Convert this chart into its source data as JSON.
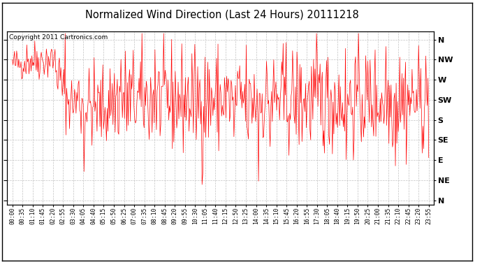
{
  "title": "Normalized Wind Direction (Last 24 Hours) 20111218",
  "copyright_text": "Copyright 2011 Cartronics.com",
  "line_color": "#FF0000",
  "background_color": "#FFFFFF",
  "plot_background": "#FFFFFF",
  "grid_color": "#BBBBBB",
  "ytick_labels": [
    "N",
    "NW",
    "W",
    "SW",
    "S",
    "SE",
    "E",
    "NE",
    "N"
  ],
  "ytick_values": [
    8,
    7,
    6,
    5,
    4,
    3,
    2,
    1,
    0
  ],
  "ylim": [
    -0.2,
    8.4
  ],
  "xtick_labels": [
    "00:00",
    "00:35",
    "01:10",
    "01:45",
    "02:20",
    "02:55",
    "03:30",
    "04:05",
    "04:40",
    "05:15",
    "05:50",
    "06:25",
    "07:00",
    "07:35",
    "08:10",
    "08:45",
    "09:20",
    "09:55",
    "10:30",
    "11:05",
    "11:40",
    "12:15",
    "12:50",
    "13:25",
    "14:00",
    "14:35",
    "15:10",
    "15:45",
    "16:20",
    "16:55",
    "17:30",
    "18:05",
    "18:40",
    "19:15",
    "19:50",
    "20:25",
    "21:00",
    "21:35",
    "22:10",
    "22:45",
    "23:20",
    "23:55"
  ],
  "seed": 42,
  "n_points": 576
}
